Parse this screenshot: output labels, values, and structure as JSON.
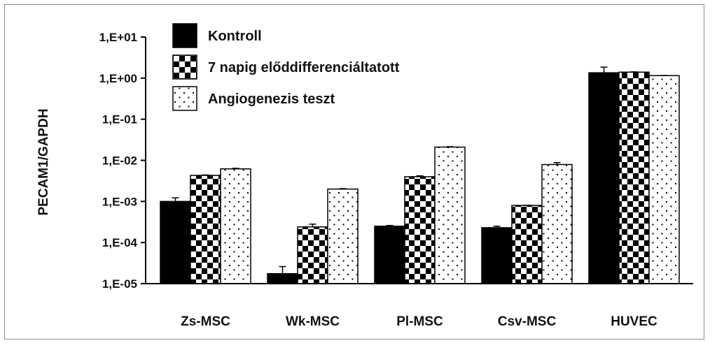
{
  "chart_data": {
    "type": "bar",
    "scale": "log",
    "ylabel": "PECAM1/GAPDH",
    "xlabel": "",
    "title": "",
    "categories": [
      "Zs-MSC",
      "Wk-MSC",
      "Pl-MSC",
      "Csv-MSC",
      "HUVEC"
    ],
    "y_ticks": [
      "1,E-05",
      "1,E-04",
      "1,E-03",
      "1,E-02",
      "1,E-01",
      "1,E+00",
      "1,E+01"
    ],
    "ylim": [
      1e-05,
      10
    ],
    "legend_position": "top-left",
    "series": [
      {
        "name": "Kontroll",
        "pattern": "solid",
        "values": [
          0.001,
          1.75e-05,
          0.00025,
          0.00023,
          1.35
        ],
        "error_upper": [
          0.00122,
          2.6e-05,
          0.00026,
          0.00025,
          1.85
        ]
      },
      {
        "name": "7 napig előddifferenciáltatott",
        "pattern": "checker",
        "values": [
          0.0043,
          0.00024,
          0.004,
          0.0008,
          1.4
        ],
        "error_upper": [
          0.0044,
          0.00028,
          0.0042,
          0.00081,
          1.42
        ]
      },
      {
        "name": "Angiogenezis teszt",
        "pattern": "dots",
        "values": [
          0.0062,
          0.002,
          0.021,
          0.0079,
          1.15
        ],
        "error_upper": [
          0.0064,
          0.00205,
          0.0215,
          0.0088,
          1.16
        ]
      }
    ],
    "colors": {
      "bar_fill": "#000000",
      "background": "#ffffff",
      "frame": "#8a8a8a"
    }
  }
}
